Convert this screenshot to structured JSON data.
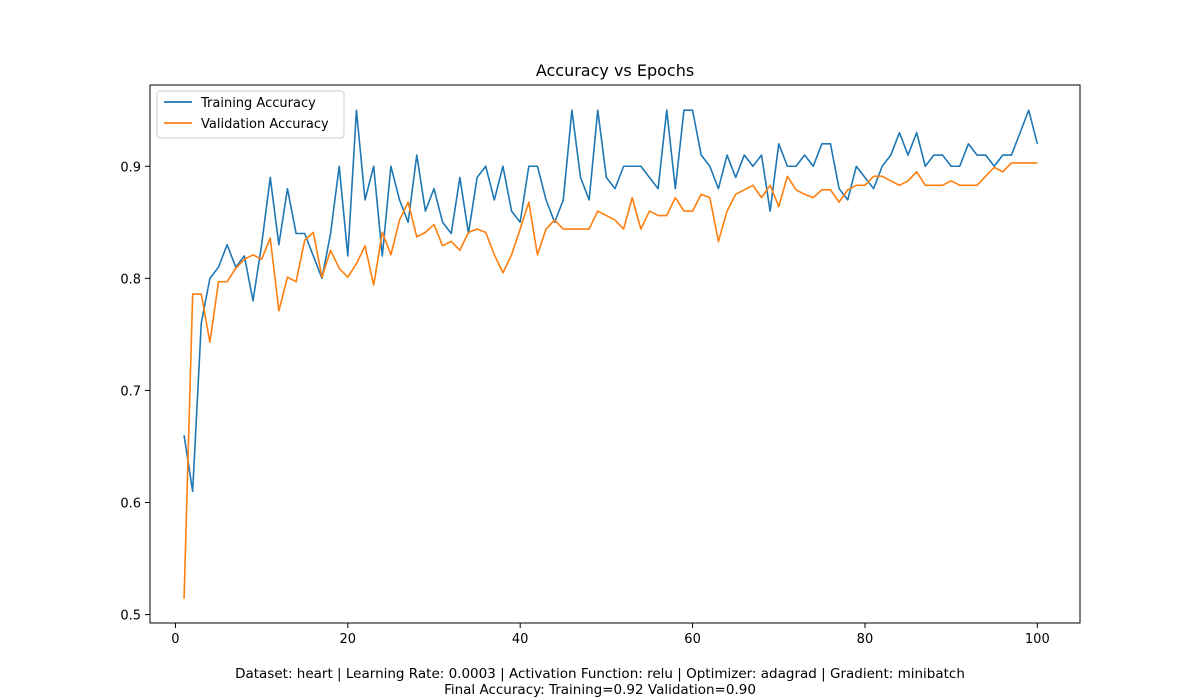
{
  "chart_data": {
    "type": "line",
    "title": "Accuracy vs Epochs",
    "xlabel": "",
    "ylabel": "",
    "xlim": [
      -2.95,
      104.95
    ],
    "ylim": [
      0.4925,
      0.9725
    ],
    "xticks": [
      0,
      20,
      40,
      60,
      80,
      100
    ],
    "yticks": [
      0.5,
      0.6,
      0.7,
      0.8,
      0.9
    ],
    "ytick_labels": [
      "0.5",
      "0.6",
      "0.7",
      "0.8",
      "0.9"
    ],
    "legend_position": "top-left",
    "grid": false,
    "x": [
      1,
      2,
      3,
      4,
      5,
      6,
      7,
      8,
      9,
      10,
      11,
      12,
      13,
      14,
      15,
      16,
      17,
      18,
      19,
      20,
      21,
      22,
      23,
      24,
      25,
      26,
      27,
      28,
      29,
      30,
      31,
      32,
      33,
      34,
      35,
      36,
      37,
      38,
      39,
      40,
      41,
      42,
      43,
      44,
      45,
      46,
      47,
      48,
      49,
      50,
      51,
      52,
      53,
      54,
      55,
      56,
      57,
      58,
      59,
      60,
      61,
      62,
      63,
      64,
      65,
      66,
      67,
      68,
      69,
      70,
      71,
      72,
      73,
      74,
      75,
      76,
      77,
      78,
      79,
      80,
      81,
      82,
      83,
      84,
      85,
      86,
      87,
      88,
      89,
      90,
      91,
      92,
      93,
      94,
      95,
      96,
      97,
      98,
      99,
      100
    ],
    "series": [
      {
        "name": "Training Accuracy",
        "color": "#1f77b4",
        "values": [
          0.66,
          0.61,
          0.76,
          0.8,
          0.81,
          0.83,
          0.81,
          0.82,
          0.78,
          0.83,
          0.89,
          0.83,
          0.88,
          0.84,
          0.84,
          0.82,
          0.8,
          0.84,
          0.9,
          0.82,
          0.95,
          0.87,
          0.9,
          0.82,
          0.9,
          0.87,
          0.85,
          0.91,
          0.86,
          0.88,
          0.85,
          0.84,
          0.89,
          0.84,
          0.89,
          0.9,
          0.87,
          0.9,
          0.86,
          0.85,
          0.9,
          0.9,
          0.87,
          0.85,
          0.87,
          0.95,
          0.89,
          0.87,
          0.95,
          0.89,
          0.88,
          0.9,
          0.9,
          0.9,
          0.89,
          0.88,
          0.95,
          0.88,
          0.95,
          0.95,
          0.91,
          0.9,
          0.88,
          0.91,
          0.89,
          0.91,
          0.9,
          0.91,
          0.86,
          0.92,
          0.9,
          0.9,
          0.91,
          0.9,
          0.92,
          0.92,
          0.88,
          0.87,
          0.9,
          0.89,
          0.88,
          0.9,
          0.91,
          0.93,
          0.91,
          0.93,
          0.9,
          0.91,
          0.91,
          0.9,
          0.9,
          0.92,
          0.91,
          0.91,
          0.9,
          0.91,
          0.91,
          0.93,
          0.95,
          0.92
        ]
      },
      {
        "name": "Validation Accuracy",
        "color": "#ff7f0e",
        "values": [
          0.514,
          0.786,
          0.786,
          0.743,
          0.797,
          0.797,
          0.809,
          0.817,
          0.821,
          0.817,
          0.836,
          0.771,
          0.801,
          0.797,
          0.834,
          0.841,
          0.801,
          0.825,
          0.809,
          0.801,
          0.813,
          0.829,
          0.794,
          0.841,
          0.821,
          0.852,
          0.868,
          0.837,
          0.841,
          0.848,
          0.829,
          0.833,
          0.825,
          0.841,
          0.844,
          0.841,
          0.821,
          0.805,
          0.821,
          0.844,
          0.868,
          0.821,
          0.844,
          0.852,
          0.844,
          0.844,
          0.844,
          0.844,
          0.86,
          0.856,
          0.852,
          0.844,
          0.872,
          0.844,
          0.86,
          0.856,
          0.856,
          0.872,
          0.86,
          0.86,
          0.875,
          0.872,
          0.833,
          0.86,
          0.875,
          0.879,
          0.883,
          0.872,
          0.883,
          0.864,
          0.891,
          0.879,
          0.875,
          0.872,
          0.879,
          0.879,
          0.868,
          0.879,
          0.883,
          0.883,
          0.891,
          0.891,
          0.887,
          0.883,
          0.887,
          0.895,
          0.883,
          0.883,
          0.883,
          0.887,
          0.883,
          0.883,
          0.883,
          0.891,
          0.899,
          0.895,
          0.903,
          0.903,
          0.903,
          0.903
        ]
      }
    ]
  },
  "caption": {
    "line1": "Dataset: heart | Learning Rate: 0.0003 | Activation Function: relu | Optimizer: adagrad | Gradient: minibatch",
    "line2": "Final Accuracy: Training=0.92 Validation=0.90"
  }
}
